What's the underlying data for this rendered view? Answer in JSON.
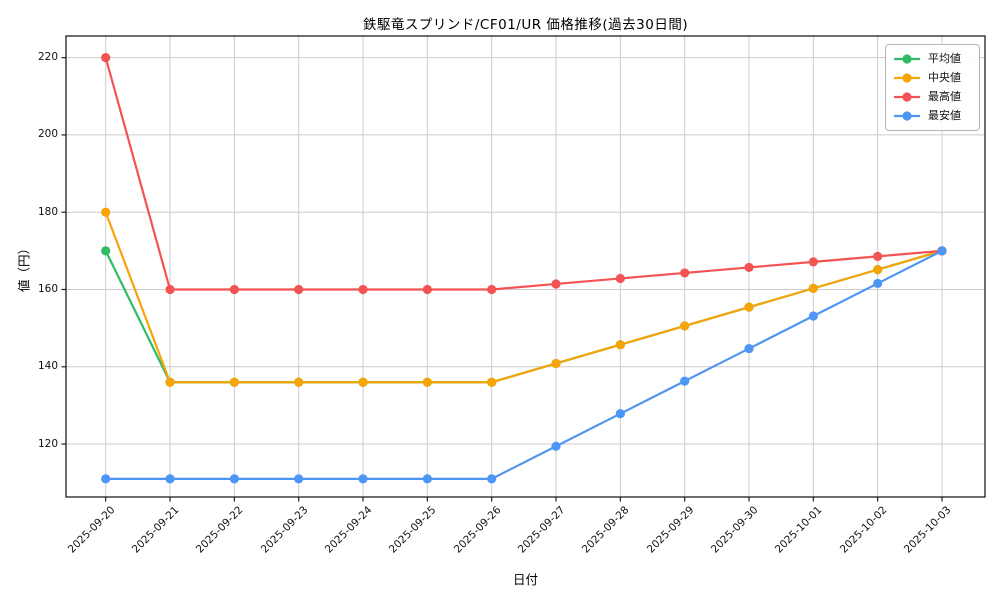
{
  "chart_data": {
    "type": "line",
    "title": "鉄駆竜スプリンド/CF01/UR 価格推移(過去30日間)",
    "xlabel": "日付",
    "ylabel": "値（円）",
    "x": [
      "2025-09-20",
      "2025-09-21",
      "2025-09-22",
      "2025-09-23",
      "2025-09-24",
      "2025-09-25",
      "2025-09-26",
      "2025-09-27",
      "2025-09-28",
      "2025-09-29",
      "2025-09-30",
      "2025-10-01",
      "2025-10-02",
      "2025-10-03"
    ],
    "yticks": [
      120,
      140,
      160,
      180,
      200,
      220
    ],
    "ylim": [
      106.3,
      225.6
    ],
    "grid": true,
    "legend_position": "upper right",
    "series": [
      {
        "name": "平均値",
        "color": "#2ebd62",
        "values": [
          170,
          136,
          136,
          136,
          136,
          136,
          136,
          140.86,
          145.71,
          150.57,
          155.43,
          160.29,
          165.14,
          170
        ]
      },
      {
        "name": "中央値",
        "color": "#f7a409",
        "values": [
          180,
          136,
          136,
          136,
          136,
          136,
          136,
          140.86,
          145.71,
          150.57,
          155.43,
          160.29,
          165.14,
          170
        ]
      },
      {
        "name": "最高値",
        "color": "#f45353",
        "values": [
          220,
          160,
          160,
          160,
          160,
          160,
          160,
          161.43,
          162.86,
          164.29,
          165.71,
          167.14,
          168.57,
          170
        ]
      },
      {
        "name": "最安値",
        "color": "#4e96f3",
        "values": [
          111,
          111,
          111,
          111,
          111,
          111,
          111,
          119.43,
          127.86,
          136.29,
          144.71,
          153.14,
          161.57,
          170
        ]
      }
    ],
    "colors": {
      "grid": "#cccccc",
      "axis_border": "#1f1f1f",
      "tick_text": "#111111",
      "background": "#ffffff"
    }
  }
}
